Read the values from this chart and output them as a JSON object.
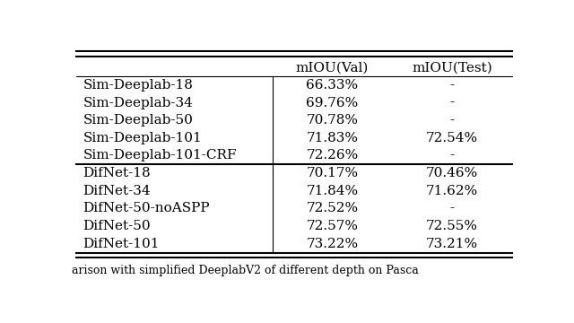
{
  "col_headers": [
    "",
    "mIOU(Val)",
    "mIOU(Test)"
  ],
  "rows": [
    [
      "Sim-Deeplab-18",
      "66.33%",
      "-"
    ],
    [
      "Sim-Deeplab-34",
      "69.76%",
      "-"
    ],
    [
      "Sim-Deeplab-50",
      "70.78%",
      "-"
    ],
    [
      "Sim-Deeplab-101",
      "71.83%",
      "72.54%"
    ],
    [
      "Sim-Deeplab-101-CRF",
      "72.26%",
      "-"
    ],
    [
      "DifNet-18",
      "70.17%",
      "70.46%"
    ],
    [
      "DifNet-34",
      "71.84%",
      "71.62%"
    ],
    [
      "DifNet-50-noASPP",
      "72.52%",
      "-"
    ],
    [
      "DifNet-50",
      "72.57%",
      "72.55%"
    ],
    [
      "DifNet-101",
      "73.22%",
      "73.21%"
    ]
  ],
  "section_break_after": 4,
  "caption": "arison with simplified DeeplabV2 of different depth on Pasca",
  "bg_color": "#ffffff",
  "text_color": "#000000",
  "font_size": 11
}
